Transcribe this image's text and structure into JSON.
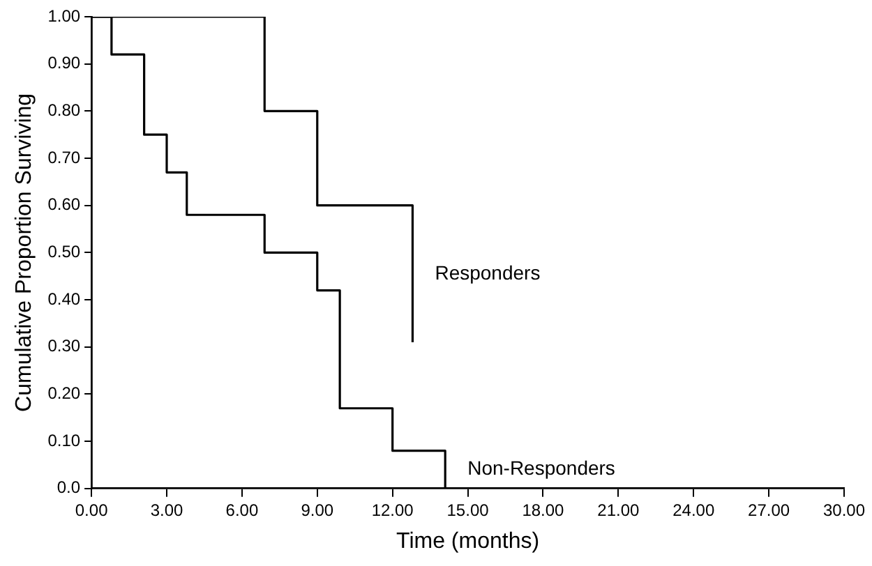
{
  "chart_data": {
    "type": "step",
    "xlabel": "Time (months)",
    "ylabel": "Cumulative Proportion Surviving",
    "xlim": [
      0,
      30
    ],
    "xticks": [
      {
        "value": 0,
        "label": "0.00"
      },
      {
        "value": 3,
        "label": "3.00"
      },
      {
        "value": 6,
        "label": "6.00"
      },
      {
        "value": 9,
        "label": "9.00"
      },
      {
        "value": 12,
        "label": "12.00"
      },
      {
        "value": 15,
        "label": "15.00"
      },
      {
        "value": 18,
        "label": "18.00"
      },
      {
        "value": 21,
        "label": "21.00"
      },
      {
        "value": 24,
        "label": "24.00"
      },
      {
        "value": 27,
        "label": "27.00"
      },
      {
        "value": 30,
        "label": "30.00"
      }
    ],
    "ylim": [
      0,
      1
    ],
    "yticks": [
      {
        "value": 0,
        "label": "0.0"
      },
      {
        "value": 0.1,
        "label": "0.10"
      },
      {
        "value": 0.2,
        "label": "0.20"
      },
      {
        "value": 0.3,
        "label": "0.30"
      },
      {
        "value": 0.4,
        "label": "0.40"
      },
      {
        "value": 0.5,
        "label": "0.50"
      },
      {
        "value": 0.6,
        "label": "0.60"
      },
      {
        "value": 0.7,
        "label": "0.70"
      },
      {
        "value": 0.8,
        "label": "0.80"
      },
      {
        "value": 0.9,
        "label": "0.90"
      },
      {
        "value": 1,
        "label": "1.00"
      }
    ],
    "grid": false,
    "legend": false,
    "marker": "none",
    "line_style": "solid",
    "series": [
      {
        "name": "Responders",
        "color": "#000000",
        "x": [
          0,
          6.9,
          9,
          12.8
        ],
        "values": [
          1,
          0.8,
          0.6,
          0.31
        ]
      },
      {
        "name": "Non-Responders",
        "color": "#000000",
        "x": [
          0,
          0.8,
          2.1,
          3,
          3.8,
          6.9,
          9,
          9.9,
          12,
          14.1
        ],
        "values": [
          1,
          0.92,
          0.75,
          0.67,
          0.58,
          0.5,
          0.42,
          0.17,
          0.08,
          0
        ]
      }
    ]
  }
}
